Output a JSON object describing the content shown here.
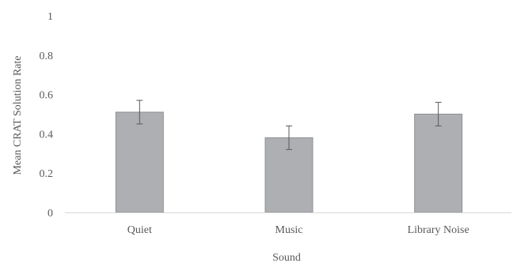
{
  "chart_data": {
    "type": "bar",
    "categories": [
      "Quiet",
      "Music",
      "Library Noise"
    ],
    "values": [
      0.51,
      0.38,
      0.5
    ],
    "error_bars": [
      0.06,
      0.06,
      0.06
    ],
    "title": "",
    "xlabel": "Sound",
    "ylabel": "Mean CRAT Solution Rate",
    "ylim": [
      0,
      1
    ],
    "yticks": [
      "0",
      "0.2",
      "0.4",
      "0.6",
      "0.8",
      "1"
    ],
    "ytick_values": [
      0,
      0.2,
      0.4,
      0.6,
      0.8,
      1
    ],
    "grid": false,
    "legend": "none",
    "colors": {
      "bar_fill": "#aeafb2",
      "bar_stroke": "#8f9093",
      "axis": "#d9d9d9",
      "error_bar": "#595959",
      "text": "#595959"
    }
  }
}
